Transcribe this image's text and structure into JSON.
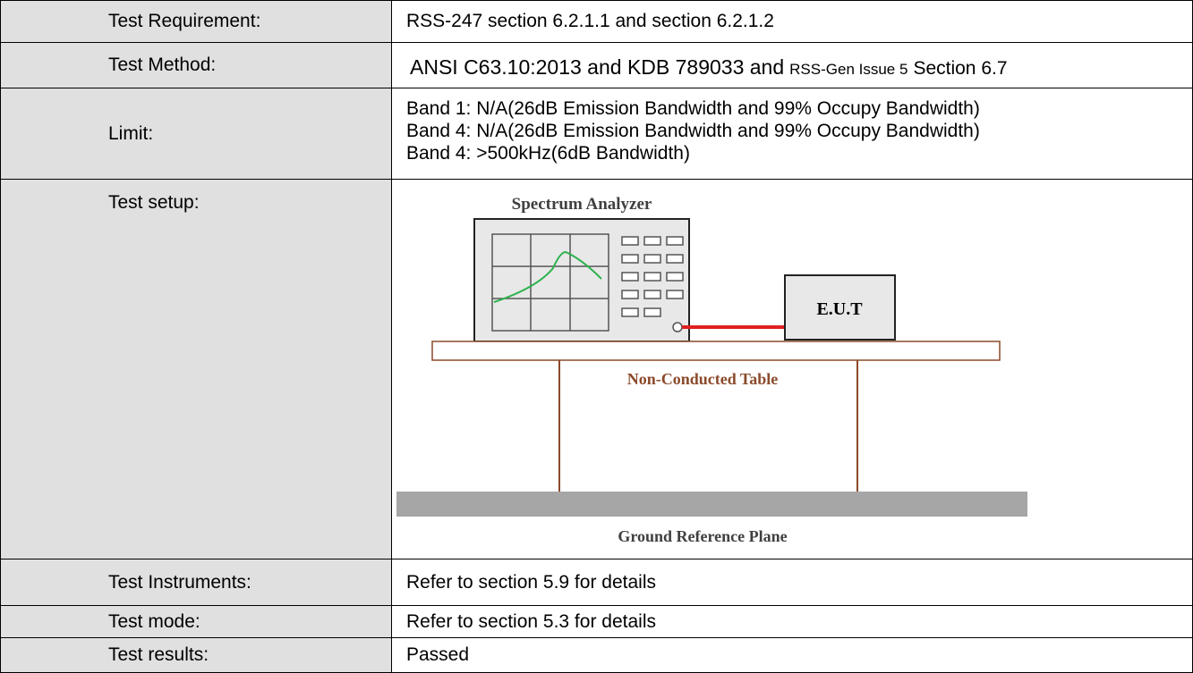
{
  "rows": [
    {
      "label": "Test Requirement:",
      "value": "RSS-247 section 6.2.1.1 and section 6.2.1.2"
    },
    {
      "label": "Test Method:",
      "value_parts": [
        "ANSI C63.10:2013 and KDB 789033 and",
        "RSS-Gen Issue 5",
        "Section 6.7"
      ]
    },
    {
      "label": "Limit:",
      "lines": [
        "Band 1: N/A(26dB Emission Bandwidth and 99% Occupy Bandwidth)",
        "Band 4: N/A(26dB Emission Bandwidth and 99% Occupy Bandwidth)",
        "Band 4: >500kHz(6dB Bandwidth)"
      ]
    },
    {
      "label": "Test setup:",
      "diagram": {
        "analyzer": "Spectrum Analyzer",
        "eut": "E.U.T",
        "table": "Non-Conducted Table",
        "ground": "Ground Reference Plane"
      }
    },
    {
      "label": "Test Instruments:",
      "value": "Refer to section 5.9 for details"
    },
    {
      "label": "Test mode:",
      "value": "Refer to section 5.3 for details"
    },
    {
      "label": "Test results:",
      "value": "Passed"
    }
  ]
}
